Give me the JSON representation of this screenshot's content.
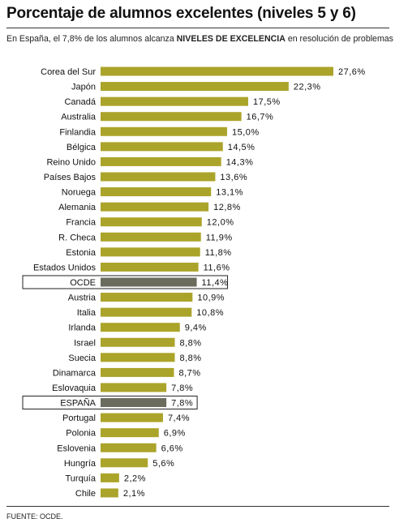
{
  "title": "Porcentaje de alumnos excelentes (niveles 5 y 6)",
  "subtitle": {
    "before": "En España, el 7,8% de los alumnos alcanza ",
    "bold": "NIVELES DE EXCELENCIA",
    "after": " en resolución de problemas"
  },
  "source": "FUENTE: OCDE.",
  "colors": {
    "bar": "#aba42a",
    "highlight_bar": "#6b6b5e",
    "highlight_box": "#222222"
  },
  "chart_data": {
    "type": "bar",
    "orientation": "horizontal",
    "unit": "%",
    "xlim": [
      0,
      27.6
    ],
    "grid": false,
    "legend": "none",
    "categories": [
      "Corea del Sur",
      "Japón",
      "Canadá",
      "Australia",
      "Finlandia",
      "Bélgica",
      "Reino Unido",
      "Países Bajos",
      "Noruega",
      "Alemania",
      "Francia",
      "R. Checa",
      "Estonia",
      "Estados Unidos",
      "OCDE",
      "Austria",
      "Italia",
      "Irlanda",
      "Israel",
      "Suecia",
      "Dinamarca",
      "Eslovaquia",
      "ESPAÑA",
      "Portugal",
      "Polonia",
      "Eslovenia",
      "Hungría",
      "Turquía",
      "Chile"
    ],
    "values": [
      27.6,
      22.3,
      17.5,
      16.7,
      15.0,
      14.5,
      14.3,
      13.6,
      13.1,
      12.8,
      12.0,
      11.9,
      11.8,
      11.6,
      11.4,
      10.9,
      10.8,
      9.4,
      8.8,
      8.8,
      8.7,
      7.8,
      7.8,
      7.4,
      6.9,
      6.6,
      5.6,
      2.2,
      2.1
    ],
    "value_labels": [
      "27,6%",
      "22,3%",
      "17,5%",
      "16,7%",
      "15,0%",
      "14,5%",
      "14,3%",
      "13,6%",
      "13,1%",
      "12,8%",
      "12,0%",
      "11,9%",
      "11,8%",
      "11,6%",
      "11,4%",
      "10,9%",
      "10,8%",
      "9,4%",
      "8,8%",
      "8,8%",
      "8,7%",
      "7,8%",
      "7,8%",
      "7,4%",
      "6,9%",
      "6,6%",
      "5,6%",
      "2,2%",
      "2,1%"
    ],
    "highlighted": [
      "OCDE",
      "ESPAÑA"
    ]
  }
}
